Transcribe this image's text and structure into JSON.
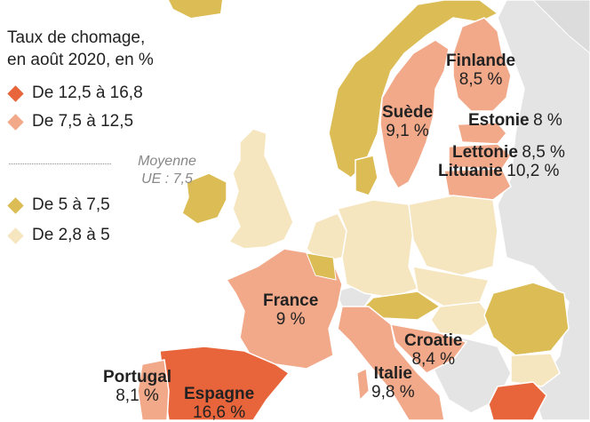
{
  "legend": {
    "title_line1": "Taux de chomage,",
    "title_line2": "en août 2020, en %",
    "classes": [
      {
        "label": "De 12,5 à 16,8",
        "color": "#e8643a"
      },
      {
        "label": "De 7,5 à 12,5",
        "color": "#f2a98a"
      },
      {
        "label": "De 5 à 7,5",
        "color": "#dcbc55"
      },
      {
        "label": "De 2,8 à 5",
        "color": "#f6e6c0"
      }
    ],
    "average_line1": "Moyenne",
    "average_line2": "UE : 7,5"
  },
  "countries": {
    "finlande": {
      "name": "Finlande",
      "value": "8,5 %"
    },
    "suede": {
      "name": "Suède",
      "value": "9,1 %"
    },
    "estonie": {
      "name": "Estonie",
      "value": "8 %"
    },
    "lettonie": {
      "name": "Lettonie",
      "value": "8,5 %"
    },
    "lituanie": {
      "name": "Lituanie",
      "value": "10,2 %"
    },
    "france": {
      "name": "France",
      "value": "9 %"
    },
    "croatie": {
      "name": "Croatie",
      "value": "8,4 %"
    },
    "italie": {
      "name": "Italie",
      "value": "9,8 %"
    },
    "portugal": {
      "name": "Portugal",
      "value": "8,1 %"
    },
    "espagne": {
      "name": "Espagne",
      "value": "16,6 %"
    }
  },
  "colors": {
    "sea": "#ffffff",
    "non_eu": "#e4e4e4",
    "border": "#ffffff"
  }
}
